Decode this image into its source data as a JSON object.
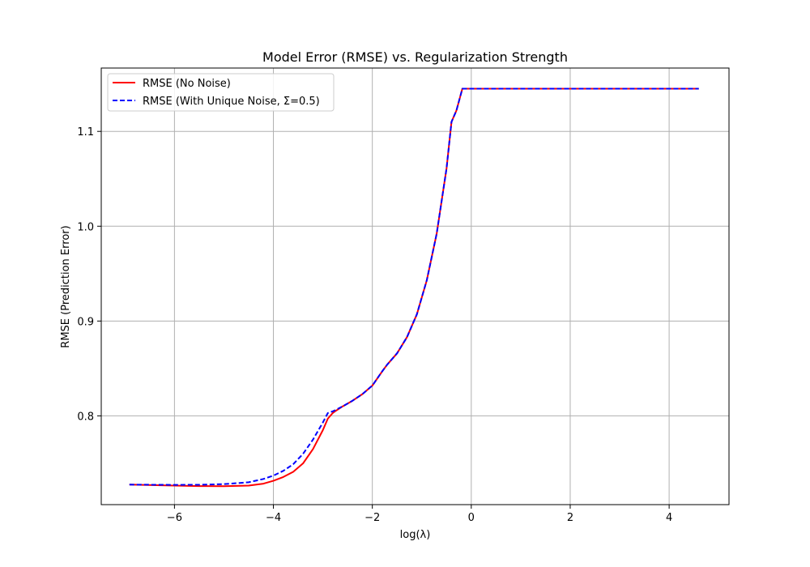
{
  "chart_data": {
    "type": "line",
    "title": "Model Error (RMSE) vs. Regularization Strength",
    "xlabel": "log(λ)",
    "ylabel": "RMSE (Prediction Error)",
    "xlim": [
      -7.48,
      5.21
    ],
    "ylim": [
      0.7064,
      1.1668
    ],
    "xticks": [
      -6,
      -4,
      -2,
      0,
      2,
      4
    ],
    "xtick_labels": [
      "−6",
      "−4",
      "−2",
      "0",
      "2",
      "4"
    ],
    "yticks": [
      0.8,
      0.9,
      1.0,
      1.1
    ],
    "ytick_labels": [
      "0.8",
      "0.9",
      "1.0",
      "1.1"
    ],
    "grid": true,
    "legend": "top-left",
    "series": [
      {
        "name": "RMSE (No Noise)",
        "color": "#ff0000",
        "style": "solid",
        "x": [
          -6.91,
          -6.0,
          -5.5,
          -5.0,
          -4.5,
          -4.2,
          -4.0,
          -3.8,
          -3.6,
          -3.4,
          -3.2,
          -3.0,
          -2.9,
          -2.8,
          -2.75,
          -2.6,
          -2.4,
          -2.2,
          -2.0,
          -1.8,
          -1.7,
          -1.5,
          -1.3,
          -1.1,
          -0.9,
          -0.7,
          -0.5,
          -0.4,
          -0.3,
          -0.18,
          0.0,
          2.0,
          4.6
        ],
        "y": [
          0.7275,
          0.7265,
          0.726,
          0.7258,
          0.7265,
          0.7285,
          0.7315,
          0.7355,
          0.741,
          0.75,
          0.765,
          0.785,
          0.797,
          0.803,
          0.805,
          0.81,
          0.816,
          0.823,
          0.832,
          0.847,
          0.854,
          0.866,
          0.883,
          0.907,
          0.943,
          0.992,
          1.061,
          1.11,
          1.122,
          1.145,
          1.145,
          1.145,
          1.145
        ]
      },
      {
        "name": "RMSE (With Unique Noise, Σ=0.5)",
        "color": "#0000ff",
        "style": "dashed",
        "x": [
          -6.91,
          -6.0,
          -5.5,
          -5.0,
          -4.5,
          -4.2,
          -4.0,
          -3.8,
          -3.6,
          -3.4,
          -3.2,
          -3.0,
          -2.9,
          -2.8,
          -2.75,
          -2.6,
          -2.4,
          -2.2,
          -2.0,
          -1.8,
          -1.7,
          -1.5,
          -1.3,
          -1.1,
          -0.9,
          -0.7,
          -0.5,
          -0.4,
          -0.3,
          -0.18,
          0.0,
          2.0,
          4.6
        ],
        "y": [
          0.7275,
          0.7272,
          0.7273,
          0.728,
          0.73,
          0.7335,
          0.737,
          0.742,
          0.749,
          0.76,
          0.775,
          0.793,
          0.803,
          0.8048,
          0.806,
          0.81,
          0.816,
          0.823,
          0.832,
          0.847,
          0.854,
          0.866,
          0.883,
          0.907,
          0.943,
          0.992,
          1.061,
          1.11,
          1.122,
          1.145,
          1.145,
          1.145,
          1.145
        ]
      }
    ]
  }
}
